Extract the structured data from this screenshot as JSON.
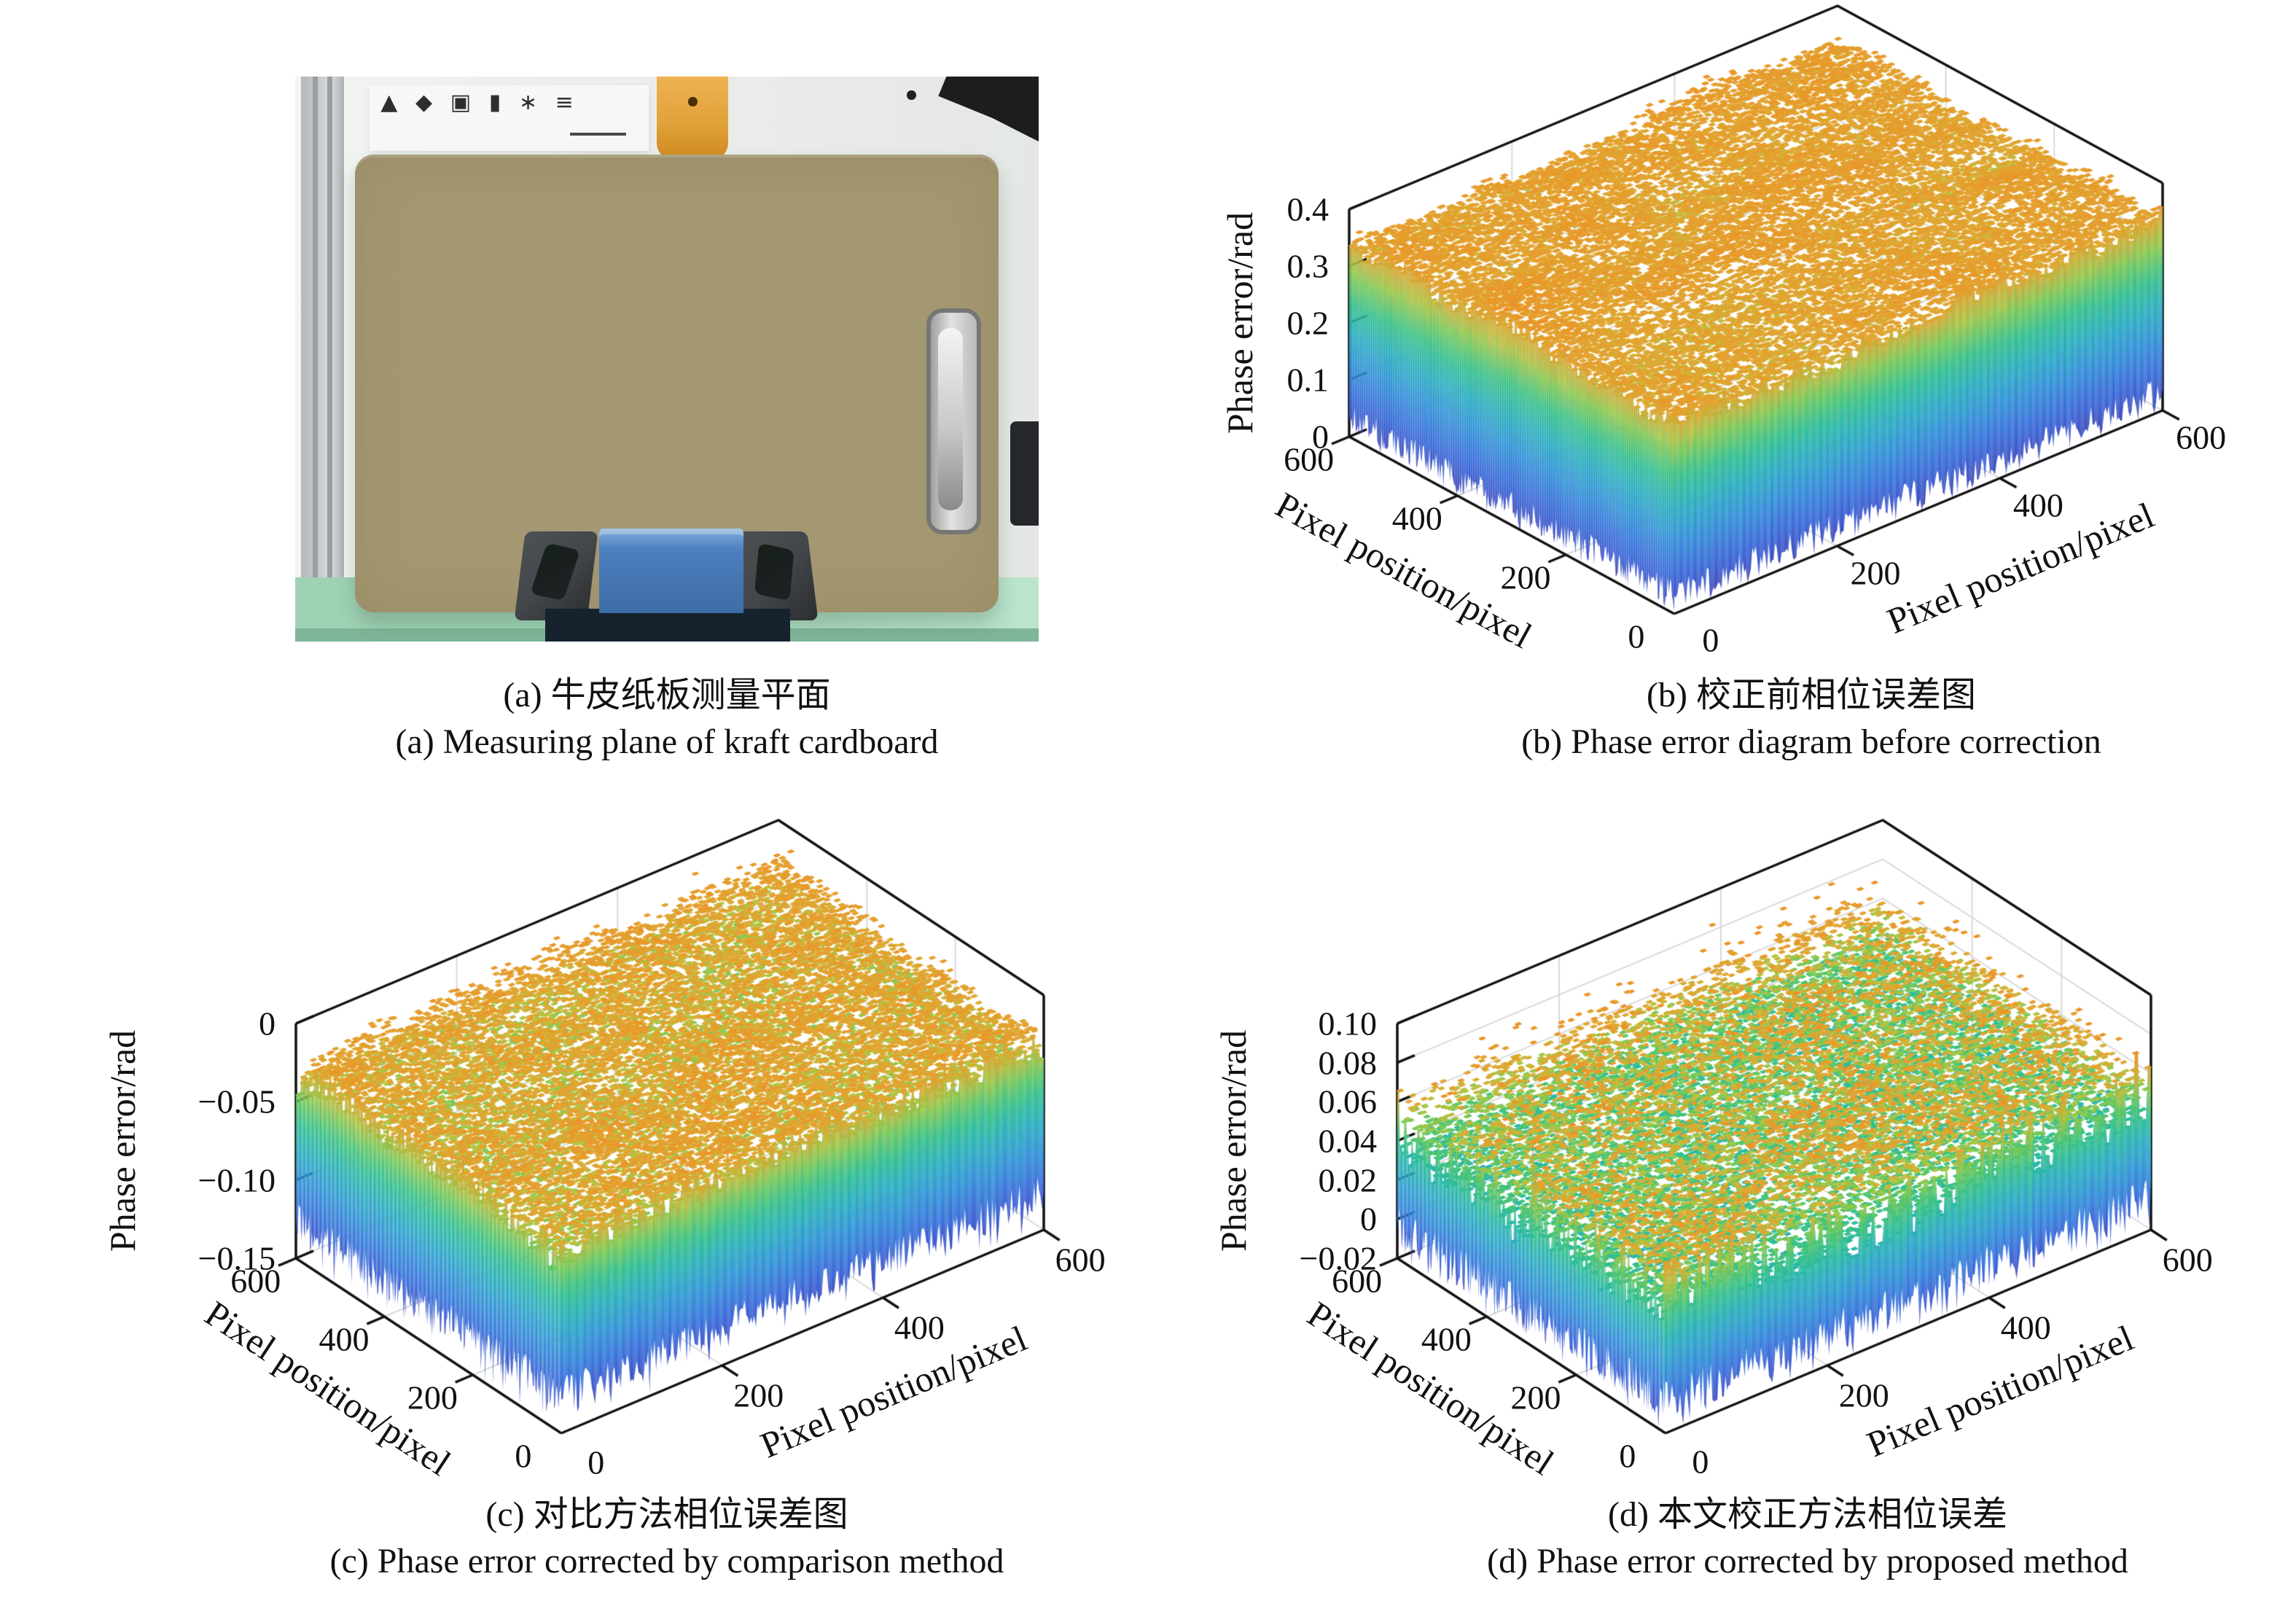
{
  "captions": {
    "a": {
      "zh": "(a) 牛皮纸板测量平面",
      "en": "(a) Measuring plane of kraft cardboard"
    },
    "b": {
      "zh": "(b) 校正前相位误差图",
      "en": "(b) Phase error diagram before correction"
    },
    "c": {
      "zh": "(c) 对比方法相位误差图",
      "en": "(c) Phase error corrected by comparison method"
    },
    "d": {
      "zh": "(d) 本文校正方法相位误差",
      "en": "(d) Phase error corrected by proposed method"
    }
  },
  "photo": {
    "description": "Kraft cardboard clipboard standing upright on a blue support block and dark stand, on a green optical table in a lab",
    "elements": [
      "aluminum-profile",
      "safety-label",
      "orange-clamp",
      "black-camera",
      "kraft-cardboard-board",
      "metal-clip",
      "blue-support-block",
      "stand-feet",
      "stand-base",
      "green-optical-table"
    ],
    "icon_glyphs": [
      "▲",
      "◆",
      "▣",
      "▮",
      "∗",
      "≡"
    ],
    "colors": {
      "wall": "#edefed",
      "aluminum": "#c6cacd",
      "aluminum_groove": "#989ea3",
      "sticker": "#f7f8f5",
      "icon_dark": "#2e2e2e",
      "clamp_orange": "#e2a23a",
      "camera_black": "#1c1d1f",
      "cardboard": "#a49872",
      "clip_silver": "#e2e2e0",
      "clip_dark": "#76777 5",
      "table_green": "#9fd2b4",
      "table_green_light": "#bce5cd",
      "table_front": "#7fb598",
      "block_blue": "#4d80c0",
      "block_blue_light": "#86b0dd",
      "base_navy": "#16222e",
      "foot_gray": "#43464a",
      "foot_dark": "#1f2124"
    }
  },
  "style": {
    "text_color": "#111111",
    "grid_color": "#d9d9d9",
    "axis_color": "#111111",
    "background": "#ffffff"
  },
  "colormap_stops": [
    [
      0.0,
      [
        64,
        66,
        172
      ]
    ],
    [
      0.1,
      [
        62,
        84,
        204
      ]
    ],
    [
      0.24,
      [
        58,
        116,
        221
      ]
    ],
    [
      0.38,
      [
        50,
        150,
        214
      ]
    ],
    [
      0.5,
      [
        44,
        174,
        194
      ]
    ],
    [
      0.6,
      [
        44,
        189,
        157
      ]
    ],
    [
      0.69,
      [
        72,
        197,
        118
      ]
    ],
    [
      0.76,
      [
        122,
        202,
        85
      ]
    ],
    [
      0.82,
      [
        180,
        196,
        66
      ]
    ],
    [
      0.87,
      [
        222,
        170,
        52
      ]
    ],
    [
      1.0,
      [
        235,
        149,
        41
      ]
    ]
  ],
  "chart_data": [
    {
      "panel": "b",
      "type": "surface",
      "title": "(b) Phase error diagram before correction",
      "xlabel": "Pixel position/pixel",
      "ylabel": "Pixel position/pixel",
      "zlabel": "Phase error/rad",
      "x_range": [
        0,
        600
      ],
      "y_range": [
        0,
        600
      ],
      "z_range": [
        0,
        0.4
      ],
      "x_tick_labels": [
        "0",
        "200",
        "400",
        "600"
      ],
      "y_tick_labels": [
        "0",
        "200",
        "400",
        "600"
      ],
      "z_tick_values": [
        0,
        0.1,
        0.2,
        0.3,
        0.4
      ],
      "z_tick_labels": [
        "0",
        "0.1",
        "0.2",
        "0.3",
        "0.4"
      ],
      "grid": true,
      "legend": "none",
      "colormap": "blue-teal-green-orange (parula-like), scaled to data min/max",
      "surface": {
        "mean": 0.335,
        "low_freq_amp": 0.022,
        "high_freq_amp": 0.018,
        "spike_amp": 0.012,
        "skirt_bottom_mean": 0.035,
        "skirt_bottom_amp": 0.026,
        "seed": 7
      },
      "summary": "Noisy plane of phase error before correction: top surface ~0.30-0.38 rad (orange with green patches), side skirts fall to ~0.01-0.07 rad (blue)."
    },
    {
      "panel": "c",
      "type": "surface",
      "title": "(c) Phase error corrected by comparison method",
      "xlabel": "Pixel position/pixel",
      "ylabel": "Pixel position/pixel",
      "zlabel": "Phase error/rad",
      "x_range": [
        0,
        600
      ],
      "y_range": [
        0,
        600
      ],
      "z_range": [
        -0.15,
        0
      ],
      "x_tick_labels": [
        "0",
        "200",
        "400",
        "600"
      ],
      "y_tick_labels": [
        "0",
        "200",
        "400",
        "600"
      ],
      "z_tick_values": [
        0,
        -0.05,
        -0.1,
        -0.15
      ],
      "z_tick_labels": [
        "0",
        "−0.05",
        "−0.10",
        "−0.15"
      ],
      "grid": true,
      "legend": "none",
      "colormap": "blue-teal-green-orange (parula-like), scaled to data min/max",
      "surface": {
        "mean": -0.033,
        "low_freq_amp": 0.0085,
        "high_freq_amp": 0.011,
        "spike_amp": 0.01,
        "skirt_bottom_mean": -0.126,
        "skirt_bottom_amp": 0.012,
        "seed": 13
      },
      "summary": "Phase error after comparison method: spiky top around -0.02 to -0.04 rad (orange/green), skirts hang to ~-0.11 to -0.15 rad (blue)."
    },
    {
      "panel": "d",
      "type": "surface",
      "title": "(d) Phase error corrected by proposed method",
      "xlabel": "Pixel position/pixel",
      "ylabel": "Pixel position/pixel",
      "zlabel": "Phase error/rad",
      "x_range": [
        0,
        600
      ],
      "y_range": [
        0,
        600
      ],
      "z_range": [
        -0.02,
        0.1
      ],
      "x_tick_labels": [
        "0",
        "200",
        "400",
        "600"
      ],
      "y_tick_labels": [
        "0",
        "200",
        "400",
        "600"
      ],
      "z_tick_values": [
        -0.02,
        0,
        0.02,
        0.04,
        0.06,
        0.08,
        0.1
      ],
      "z_tick_labels": [
        "−0.02",
        "0",
        "0.02",
        "0.04",
        "0.06",
        "0.08",
        "0.10"
      ],
      "grid": true,
      "legend": "none",
      "colormap": "blue-teal-green-orange (parula-like), scaled to data min/max",
      "surface": {
        "mean": 0.048,
        "low_freq_amp": 0.009,
        "high_freq_amp": 0.016,
        "spike_amp": 0.022,
        "skirt_bottom_mean": -0.004,
        "skirt_bottom_amp": 0.011,
        "seed": 29
      },
      "summary": "Phase error after proposed method: spiky top around 0.03-0.08 rad (green with orange peaks), skirts hang to ~-0.015 to 0.01 rad (blue)."
    }
  ]
}
